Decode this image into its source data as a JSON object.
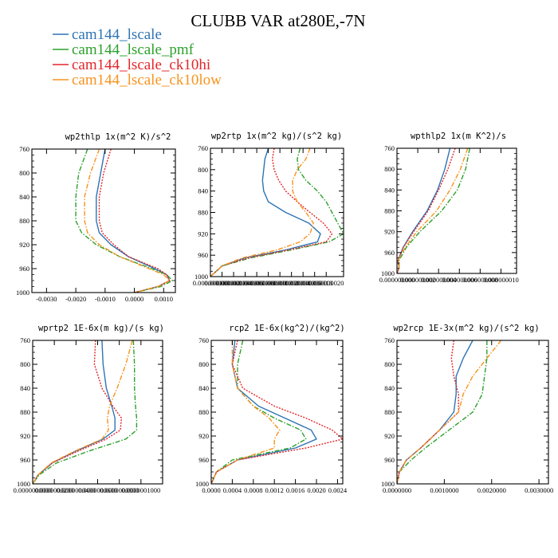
{
  "figure": {
    "title": "CLUBB VAR at280E,-7N"
  },
  "legend": [
    {
      "label": "cam144_lscale",
      "color": "#2e74b5",
      "dash": "solid"
    },
    {
      "label": "cam144_lscale_pmf",
      "color": "#2ca02c",
      "dash": "dashdot"
    },
    {
      "label": "cam144_lscale_ck10hi",
      "color": "#e3262b",
      "dash": "dotted"
    },
    {
      "label": "cam144_lscale_ck10low",
      "color": "#f7931e",
      "dash": "dashdot"
    }
  ],
  "chart_data": [
    {
      "type": "line",
      "title": "wp2thlp  1x(m^2 K)/s^2",
      "xlim": [
        -0.0035,
        0.0014
      ],
      "ylim": [
        760,
        1000
      ],
      "y_inverted": true,
      "xticks": [
        -0.003,
        -0.002,
        -0.001,
        0.0,
        0.001
      ],
      "xtick_labels": [
        "-0.0030",
        "-0.0020",
        "-0.0010",
        "0.0000",
        "0.0010"
      ],
      "yticks": [
        760,
        800,
        840,
        880,
        920,
        960,
        1000
      ],
      "ytick_labels": [
        "760",
        "800",
        "840",
        "880",
        "920",
        "960",
        "1000"
      ],
      "series": [
        {
          "name": "cam144_lscale",
          "y": [
            760,
            800,
            840,
            880,
            900,
            920,
            940,
            960,
            970,
            980,
            990,
            1000
          ],
          "x": [
            -0.001,
            -0.00115,
            -0.0013,
            -0.0013,
            -0.0012,
            -0.0008,
            -0.0002,
            0.0007,
            0.0011,
            0.0012,
            0.0008,
            0.0
          ]
        },
        {
          "name": "cam144_lscale_pmf",
          "y": [
            760,
            800,
            840,
            880,
            900,
            920,
            940,
            960,
            970,
            980,
            990,
            1000
          ],
          "x": [
            -0.0016,
            -0.0019,
            -0.002,
            -0.002,
            -0.0018,
            -0.0013,
            -0.0005,
            0.0006,
            0.0011,
            0.0013,
            0.0009,
            0.0
          ]
        },
        {
          "name": "cam144_lscale_ck10hi",
          "y": [
            760,
            800,
            840,
            880,
            900,
            920,
            940,
            960,
            970,
            980,
            990,
            1000
          ],
          "x": [
            -0.0008,
            -0.00105,
            -0.0012,
            -0.0012,
            -0.0011,
            -0.0007,
            -0.0002,
            0.0008,
            0.0011,
            0.0012,
            0.0008,
            0.0
          ]
        },
        {
          "name": "cam144_lscale_ck10low",
          "y": [
            760,
            800,
            840,
            880,
            900,
            920,
            940,
            960,
            970,
            980,
            990,
            1000
          ],
          "x": [
            -0.0012,
            -0.0015,
            -0.0017,
            -0.0017,
            -0.0016,
            -0.0012,
            -0.0005,
            0.0005,
            0.001,
            0.0012,
            0.0008,
            0.0
          ]
        }
      ]
    },
    {
      "type": "line",
      "title": "wp2rtp  1x(m^2 kg)/(s^2 kg)",
      "xlim": [
        0,
        2.3e-08
      ],
      "ylim": [
        760,
        1000
      ],
      "y_inverted": true,
      "xticks": [
        0,
        2e-09,
        4e-09,
        6e-09,
        8e-09,
        1e-08,
        1.2e-08,
        1.4e-08,
        1.6e-08,
        1.8e-08,
        2e-08
      ],
      "xtick_labels": [
        "0.000000000",
        "0.000000002",
        "0.000000004",
        "0.000000006",
        "0.000000008",
        "0.000000010",
        "0.000000012",
        "0.000000014",
        "0.000000016",
        "0.000000018",
        "0.000000020"
      ],
      "yticks": [
        760,
        800,
        840,
        880,
        920,
        960,
        1000
      ],
      "ytick_labels": [
        "760",
        "800",
        "840",
        "880",
        "920",
        "960",
        "1000"
      ],
      "series": [
        {
          "name": "cam144_lscale",
          "y": [
            760,
            780,
            800,
            820,
            840,
            860,
            880,
            900,
            920,
            935,
            950,
            965,
            980,
            1000
          ],
          "x": [
            1e-08,
            9.4e-09,
            9.2e-09,
            9e-09,
            9.2e-09,
            1e-08,
            1.3e-08,
            1.7e-08,
            1.9e-08,
            1.85e-08,
            1.3e-08,
            6e-09,
            2e-09,
            0
          ]
        },
        {
          "name": "cam144_lscale_pmf",
          "y": [
            760,
            780,
            800,
            820,
            840,
            860,
            880,
            900,
            920,
            935,
            950,
            965,
            980,
            1000
          ],
          "x": [
            1.55e-08,
            1.5e-08,
            1.52e-08,
            1.65e-08,
            1.85e-08,
            2e-08,
            2.1e-08,
            2.2e-08,
            2.3e-08,
            2.05e-08,
            1.4e-08,
            7e-09,
            2e-09,
            0
          ]
        },
        {
          "name": "cam144_lscale_ck10hi",
          "y": [
            760,
            780,
            800,
            820,
            840,
            860,
            880,
            900,
            920,
            935,
            950,
            965,
            980,
            1000
          ],
          "x": [
            1.1e-08,
            1.07e-08,
            1.1e-08,
            1.18e-08,
            1.3e-08,
            1.5e-08,
            1.72e-08,
            1.95e-08,
            2.1e-08,
            2e-08,
            1.35e-08,
            6.5e-09,
            2e-09,
            0
          ]
        },
        {
          "name": "cam144_lscale_ck10low",
          "y": [
            760,
            780,
            800,
            820,
            840,
            860,
            880,
            900,
            920,
            935,
            950,
            965,
            980,
            1000
          ],
          "x": [
            1.72e-08,
            1.65e-08,
            1.5e-08,
            1.42e-08,
            1.42e-08,
            1.5e-08,
            1.65e-08,
            1.78e-08,
            1.72e-08,
            1.55e-08,
            1.15e-08,
            5.5e-09,
            2e-09,
            0
          ]
        }
      ]
    },
    {
      "type": "line",
      "title": "wpthlp2  1x(m K^2)/s",
      "xlim": [
        0,
        1.15e-08
      ],
      "ylim": [
        760,
        1000
      ],
      "y_inverted": true,
      "xticks": [
        0,
        2e-09,
        4e-09,
        6e-09,
        8e-09,
        1e-08
      ],
      "xtick_labels": [
        "0.000000000",
        "0.000000002",
        "0.000000004",
        "0.000000006",
        "0.000000008",
        "0.000000010"
      ],
      "yticks": [
        760,
        800,
        840,
        880,
        920,
        960,
        1000
      ],
      "ytick_labels": [
        "760",
        "800",
        "840",
        "880",
        "920",
        "960",
        "1000"
      ],
      "series": [
        {
          "name": "cam144_lscale",
          "y": [
            760,
            800,
            840,
            880,
            920,
            950,
            975,
            990,
            1000
          ],
          "x": [
            5.1e-09,
            4.6e-09,
            3.9e-09,
            2.9e-09,
            1.5e-09,
            6e-10,
            1e-10,
            2e-10,
            0
          ]
        },
        {
          "name": "cam144_lscale_pmf",
          "y": [
            760,
            800,
            840,
            880,
            920,
            950,
            975,
            990,
            1000
          ],
          "x": [
            7e-09,
            6.6e-09,
            5.8e-09,
            4.3e-09,
            2.2e-09,
            9e-10,
            2e-10,
            2e-10,
            0
          ]
        },
        {
          "name": "cam144_lscale_ck10hi",
          "y": [
            760,
            800,
            840,
            880,
            920,
            950,
            975,
            990,
            1000
          ],
          "x": [
            5.6e-09,
            4.9e-09,
            4e-09,
            3e-09,
            1.6e-09,
            6e-10,
            1e-10,
            2e-10,
            0
          ]
        },
        {
          "name": "cam144_lscale_ck10low",
          "y": [
            760,
            800,
            840,
            880,
            920,
            950,
            975,
            990,
            1000
          ],
          "x": [
            6.8e-09,
            6.1e-09,
            5.1e-09,
            3.8e-09,
            1.9e-09,
            8e-10,
            1e-10,
            2e-10,
            0
          ]
        }
      ]
    },
    {
      "type": "line",
      "title": "wprtp2  1E-6x(m kg)/(s kg)",
      "xlim": [
        0,
        1.2e-07
      ],
      "ylim": [
        760,
        1000
      ],
      "y_inverted": true,
      "xticks": [
        0,
        2e-08,
        4e-08,
        6e-08,
        8e-08,
        1e-07
      ],
      "xtick_labels": [
        "0.0000000000",
        "0.0000000200",
        "0.0000000400",
        "0.0000000600",
        "0.0000000800",
        "0.0000001000"
      ],
      "yticks": [
        760,
        800,
        840,
        880,
        920,
        960,
        1000
      ],
      "ytick_labels": [
        "760",
        "800",
        "840",
        "880",
        "920",
        "960",
        "1000"
      ],
      "series": [
        {
          "name": "cam144_lscale",
          "y": [
            760,
            800,
            840,
            870,
            890,
            910,
            925,
            945,
            965,
            985,
            1000
          ],
          "x": [
            6.4e-08,
            6.5e-08,
            6.8e-08,
            7.3e-08,
            7.6e-08,
            7.6e-08,
            6.5e-08,
            4e-08,
            1.8e-08,
            5e-09,
            0
          ]
        },
        {
          "name": "cam144_lscale_pmf",
          "y": [
            760,
            800,
            840,
            870,
            890,
            910,
            925,
            945,
            965,
            985,
            1000
          ],
          "x": [
            9.3e-08,
            9.4e-08,
            9.4e-08,
            9.5e-08,
            9.6e-08,
            9.6e-08,
            8.6e-08,
            5.2e-08,
            2.2e-08,
            6e-09,
            0
          ]
        },
        {
          "name": "cam144_lscale_ck10hi",
          "y": [
            760,
            800,
            840,
            870,
            890,
            910,
            925,
            945,
            965,
            985,
            1000
          ],
          "x": [
            5.8e-08,
            5.7e-08,
            6.4e-08,
            7.4e-08,
            8.2e-08,
            8.1e-08,
            6.8e-08,
            4.2e-08,
            1.8e-08,
            5e-09,
            0
          ]
        },
        {
          "name": "cam144_lscale_ck10low",
          "y": [
            760,
            800,
            840,
            870,
            890,
            910,
            925,
            945,
            965,
            985,
            1000
          ],
          "x": [
            9.2e-08,
            8.6e-08,
            7.8e-08,
            7.1e-08,
            6.9e-08,
            7e-08,
            6.4e-08,
            3.9e-08,
            1.7e-08,
            5e-09,
            0
          ]
        }
      ]
    },
    {
      "type": "line",
      "title": "rcp2  1E-6x(kg^2)/(kg^2)",
      "xlim": [
        0,
        0.0025
      ],
      "ylim": [
        760,
        1000
      ],
      "y_inverted": true,
      "xticks": [
        0,
        0.0004,
        0.0008,
        0.0012,
        0.0016,
        0.002,
        0.0024
      ],
      "xtick_labels": [
        "0.0000",
        "0.0004",
        "0.0008",
        "0.0012",
        "0.0016",
        "0.0020",
        "0.0024"
      ],
      "yticks": [
        760,
        800,
        840,
        880,
        920,
        960,
        1000
      ],
      "ytick_labels": [
        "760",
        "800",
        "840",
        "880",
        "920",
        "960",
        "1000"
      ],
      "series": [
        {
          "name": "cam144_lscale",
          "y": [
            760,
            800,
            840,
            870,
            890,
            910,
            925,
            940,
            960,
            980,
            1000
          ],
          "x": [
            0.00045,
            0.0004,
            0.0005,
            0.0009,
            0.0014,
            0.0019,
            0.002,
            0.0016,
            0.0005,
            0.0001,
            0.0
          ]
        },
        {
          "name": "cam144_lscale_pmf",
          "y": [
            760,
            800,
            840,
            870,
            890,
            910,
            925,
            940,
            960,
            980,
            1000
          ],
          "x": [
            0.0006,
            0.0005,
            0.0005,
            0.0008,
            0.0012,
            0.0017,
            0.0018,
            0.0015,
            0.0004,
            0.0001,
            0.0
          ]
        },
        {
          "name": "cam144_lscale_ck10hi",
          "y": [
            760,
            800,
            840,
            870,
            890,
            910,
            925,
            940,
            960,
            980,
            1000
          ],
          "x": [
            0.0005,
            0.0004,
            0.0006,
            0.0012,
            0.0018,
            0.0023,
            0.0025,
            0.0018,
            0.0005,
            0.0001,
            0.0
          ]
        },
        {
          "name": "cam144_lscale_ck10low",
          "y": [
            760,
            800,
            840,
            870,
            890,
            910,
            925,
            940,
            960,
            980,
            1000
          ],
          "x": [
            0.0004,
            0.0004,
            0.0005,
            0.0008,
            0.0011,
            0.0013,
            0.0012,
            0.0012,
            0.0005,
            0.0001,
            0.0
          ]
        }
      ]
    },
    {
      "type": "line",
      "title": "wp2rcp  1E-3x(m^2 kg)/(s^2 kg)",
      "xlim": [
        0,
        0.0032
      ],
      "ylim": [
        760,
        1000
      ],
      "y_inverted": true,
      "xticks": [
        0,
        0.001,
        0.002,
        0.003
      ],
      "xtick_labels": [
        "0.0000000",
        "0.0010000",
        "0.0020000",
        "0.0030000"
      ],
      "yticks": [
        760,
        800,
        840,
        880,
        920,
        960,
        1000
      ],
      "ytick_labels": [
        "760",
        "800",
        "840",
        "880",
        "920",
        "960",
        "1000"
      ],
      "series": [
        {
          "name": "cam144_lscale",
          "y": [
            760,
            790,
            820,
            850,
            880,
            910,
            940,
            960,
            980,
            1000
          ],
          "x": [
            0.0016,
            0.0014,
            0.00125,
            0.00125,
            0.0012,
            0.0009,
            0.0005,
            0.0002,
            5e-05,
            0.0
          ]
        },
        {
          "name": "cam144_lscale_pmf",
          "y": [
            760,
            790,
            820,
            850,
            880,
            910,
            940,
            960,
            980,
            1000
          ],
          "x": [
            0.0019,
            0.0019,
            0.00185,
            0.0018,
            0.0016,
            0.0011,
            0.0006,
            0.0003,
            5e-05,
            0.0
          ]
        },
        {
          "name": "cam144_lscale_ck10hi",
          "y": [
            760,
            790,
            820,
            850,
            880,
            910,
            940,
            960,
            980,
            1000
          ],
          "x": [
            0.0012,
            0.00115,
            0.0012,
            0.0013,
            0.0013,
            0.0009,
            0.0005,
            0.0002,
            5e-05,
            0.0
          ]
        },
        {
          "name": "cam144_lscale_ck10low",
          "y": [
            760,
            790,
            820,
            850,
            880,
            910,
            940,
            960,
            980,
            1000
          ],
          "x": [
            0.0022,
            0.0019,
            0.0016,
            0.0014,
            0.0013,
            0.0009,
            0.0005,
            0.0002,
            5e-05,
            0.0
          ]
        }
      ]
    }
  ]
}
